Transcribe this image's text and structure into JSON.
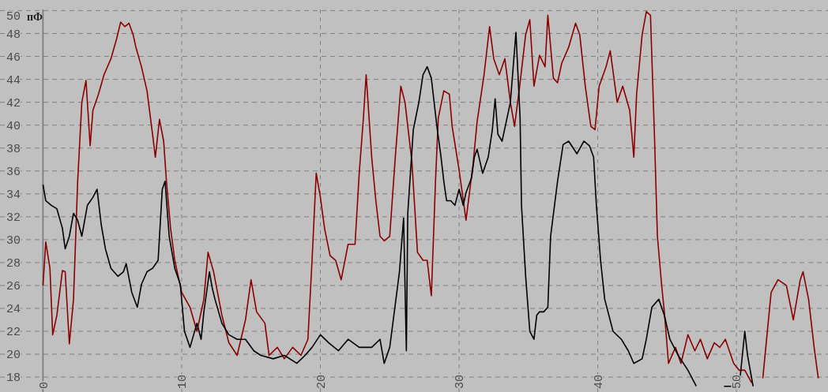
{
  "chart_data": {
    "type": "line",
    "ylabel": "пФ",
    "xlim": [
      -3.1,
      56.6
    ],
    "ylim": [
      16.7,
      50.1
    ],
    "xticks": [
      0,
      10,
      20,
      30,
      40,
      50
    ],
    "yticks": [
      18,
      20,
      22,
      24,
      26,
      28,
      30,
      32,
      34,
      36,
      38,
      40,
      42,
      44,
      46,
      48,
      50
    ],
    "grid": true,
    "series": [
      {
        "color": "#8b0000",
        "x": [
          0,
          0.2,
          0.5,
          0.7,
          1.0,
          1.4,
          1.6,
          1.9,
          2.2,
          2.5,
          2.8,
          3.1,
          3.4,
          3.6,
          4.0,
          4.4,
          4.9,
          5.3,
          5.6,
          5.9,
          6.2,
          6.5,
          6.7,
          7.1,
          7.5,
          7.9,
          8.1,
          8.4,
          8.7,
          8.9,
          9.2,
          9.5,
          10.0,
          10.6,
          11.1,
          11.6,
          11.9,
          12.3,
          12.9,
          13.4,
          14.0,
          14.6,
          15.0,
          15.4,
          16.0,
          16.3,
          16.9,
          17.4,
          18.0,
          18.6,
          19.1,
          19.4,
          19.7,
          20.0,
          20.3,
          20.7,
          21.1,
          21.5,
          22.0,
          22.5,
          22.8,
          23.1,
          23.3,
          23.7,
          24.0,
          24.3,
          24.6,
          25.0,
          25.4,
          25.8,
          26.1,
          26.6,
          27.0,
          27.4,
          27.7,
          28.0,
          28.3,
          28.5,
          28.9,
          29.3,
          29.5,
          30.0,
          30.5,
          31.0,
          31.3,
          31.8,
          32.2,
          32.5,
          32.9,
          33.3,
          33.7,
          34.0,
          34.4,
          34.8,
          35.1,
          35.4,
          35.8,
          36.2,
          36.4,
          36.8,
          37.1,
          37.4,
          37.9,
          38.4,
          38.7,
          39.1,
          39.5,
          39.8,
          40.1,
          40.6,
          40.9,
          41.4,
          41.8,
          42.3,
          42.6,
          42.8,
          43.2,
          43.5,
          43.8,
          44.1,
          44.3,
          44.6,
          44.8,
          45.1,
          45.6,
          46.0,
          46.5,
          47.0,
          47.4,
          47.9,
          48.4,
          48.8,
          49.2,
          49.8,
          50.2,
          50.6,
          51.1,
          51.5,
          51.9,
          52.5,
          53.0,
          53.6,
          54.1,
          54.6,
          54.8,
          55.2,
          55.6,
          55.9
        ],
        "values": [
          26.0,
          29.8,
          27.5,
          21.7,
          23.4,
          27.3,
          27.2,
          20.9,
          24.8,
          35.1,
          42.0,
          43.9,
          38.2,
          41.3,
          42.7,
          44.4,
          45.8,
          47.5,
          49.0,
          48.6,
          48.9,
          47.9,
          46.8,
          45.1,
          43.0,
          39.2,
          37.2,
          40.5,
          38.6,
          35.1,
          31.0,
          28.2,
          25.4,
          24.1,
          22.0,
          24.8,
          28.9,
          27.2,
          23.4,
          21.0,
          19.9,
          23.0,
          26.5,
          23.7,
          22.7,
          19.9,
          20.6,
          19.6,
          20.6,
          19.9,
          21.3,
          28.2,
          35.8,
          33.7,
          31.0,
          28.6,
          28.2,
          26.5,
          29.6,
          29.6,
          35.8,
          40.6,
          44.4,
          37.2,
          33.4,
          30.3,
          29.9,
          30.3,
          37.2,
          43.4,
          42.0,
          36.8,
          28.9,
          28.2,
          28.2,
          25.1,
          35.1,
          40.6,
          43.0,
          42.7,
          39.9,
          36.1,
          31.7,
          36.5,
          40.3,
          44.4,
          48.6,
          45.8,
          44.4,
          45.8,
          42.0,
          39.9,
          43.7,
          47.9,
          49.2,
          43.4,
          46.1,
          45.1,
          49.6,
          44.1,
          43.7,
          45.4,
          46.8,
          48.9,
          47.9,
          43.4,
          39.9,
          39.6,
          43.4,
          45.1,
          46.5,
          42.0,
          43.4,
          41.3,
          37.2,
          42.7,
          47.9,
          49.9,
          49.6,
          38.6,
          30.3,
          26.1,
          23.7,
          19.2,
          20.6,
          19.2,
          21.7,
          20.3,
          21.3,
          19.6,
          21.0,
          20.6,
          21.3,
          19.2,
          18.6,
          18.6,
          17.5,
          null,
          17.9,
          25.4,
          26.5,
          26.0,
          23.0,
          26.5,
          27.2,
          24.8,
          20.6,
          17.9
        ]
      },
      {
        "color": "#000000",
        "x": [
          0,
          0.2,
          0.6,
          1.0,
          1.4,
          1.6,
          1.9,
          2.2,
          2.5,
          2.8,
          3.2,
          3.6,
          3.9,
          4.2,
          4.5,
          4.9,
          5.4,
          5.8,
          6.0,
          6.4,
          6.8,
          7.1,
          7.5,
          7.9,
          8.3,
          8.6,
          8.8,
          9.1,
          9.5,
          9.9,
          10.2,
          10.6,
          11.1,
          11.4,
          11.6,
          12.0,
          12.2,
          12.4,
          12.9,
          13.4,
          14.0,
          14.6,
          15.2,
          15.7,
          16.6,
          17.4,
          18.3,
          18.9,
          19.4,
          20.0,
          20.6,
          21.3,
          22.0,
          22.8,
          23.7,
          24.3,
          24.6,
          25.0,
          25.3,
          25.7,
          26.0,
          26.2,
          26.3,
          26.7,
          27.1,
          27.4,
          27.7,
          28.0,
          28.4,
          28.7,
          28.9,
          29.1,
          29.4,
          29.7,
          30.0,
          30.3,
          30.5,
          30.9,
          31.1,
          31.3,
          31.7,
          32.1,
          32.4,
          32.6,
          32.8,
          33.1,
          33.4,
          33.7,
          34.1,
          34.4,
          34.5,
          34.8,
          35.1,
          35.4,
          35.6,
          35.8,
          36.1,
          36.4,
          36.6,
          37.1,
          37.5,
          37.9,
          38.5,
          39.0,
          39.4,
          39.7,
          39.9,
          40.2,
          40.5,
          41.1,
          41.7,
          42.2,
          42.6,
          43.2,
          43.5,
          43.9,
          44.4,
          44.8,
          45.2,
          45.8,
          46.5,
          47.1,
          47.6,
          49.1,
          50.2,
          50.6,
          50.8,
          51.2
        ],
        "values": [
          34.8,
          33.4,
          33.0,
          32.7,
          31.0,
          29.2,
          30.3,
          32.3,
          31.7,
          30.3,
          33.0,
          33.7,
          34.4,
          31.3,
          29.2,
          27.5,
          26.8,
          27.2,
          27.9,
          25.4,
          24.1,
          26.1,
          27.2,
          27.5,
          28.2,
          34.4,
          35.1,
          30.3,
          27.5,
          26.1,
          22.0,
          20.6,
          22.7,
          21.3,
          23.7,
          27.2,
          25.8,
          24.8,
          22.7,
          21.7,
          21.3,
          21.3,
          20.3,
          19.9,
          19.6,
          19.9,
          19.2,
          19.9,
          20.6,
          21.7,
          21.0,
          20.3,
          21.3,
          20.6,
          20.6,
          21.3,
          19.2,
          20.6,
          23.4,
          27.2,
          31.9,
          20.3,
          32.3,
          39.6,
          42.0,
          44.4,
          45.1,
          44.1,
          39.9,
          37.2,
          35.1,
          33.4,
          33.4,
          33.0,
          34.4,
          33.0,
          34.1,
          35.4,
          37.2,
          37.9,
          35.8,
          37.2,
          39.6,
          42.3,
          39.2,
          38.6,
          40.3,
          42.0,
          48.1,
          40.6,
          33.0,
          26.8,
          22.0,
          21.3,
          23.4,
          23.7,
          23.7,
          24.1,
          30.3,
          35.1,
          38.3,
          38.6,
          37.5,
          38.6,
          38.2,
          37.2,
          33.0,
          28.2,
          24.8,
          22.0,
          21.3,
          20.3,
          19.2,
          19.6,
          21.3,
          24.1,
          24.8,
          23.4,
          21.3,
          19.9,
          18.6,
          17.2,
          null,
          17.2,
          17.2,
          22.0,
          19.9,
          17.2
        ]
      }
    ]
  }
}
